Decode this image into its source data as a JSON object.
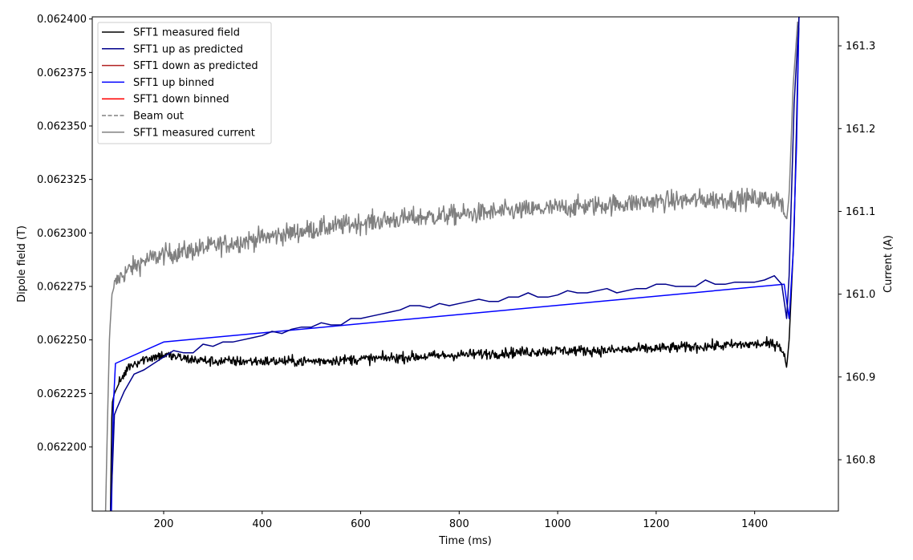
{
  "chart_data": {
    "type": "line",
    "xlabel": "Time (ms)",
    "ylabel_left": "Dipole field (T)",
    "ylabel_right": "Current (A)",
    "xlim": [
      55,
      1570
    ],
    "ylim_left": [
      0.06217,
      0.062401
    ],
    "ylim_right": [
      160.738,
      161.335
    ],
    "x_ticks": [
      200,
      400,
      600,
      800,
      1000,
      1200,
      1400
    ],
    "x_tick_labels": [
      "200",
      "400",
      "600",
      "800",
      "1000",
      "1200",
      "1400"
    ],
    "y_left_ticks": [
      0.0622,
      0.062225,
      0.06225,
      0.062275,
      0.0623,
      0.062325,
      0.06235,
      0.062375,
      0.0624
    ],
    "y_left_tick_labels": [
      "0.062200",
      "0.062225",
      "0.062250",
      "0.062275",
      "0.062300",
      "0.062325",
      "0.062350",
      "0.062375",
      "0.062400"
    ],
    "y_right_ticks": [
      160.8,
      160.9,
      161.0,
      161.1,
      161.2,
      161.3
    ],
    "y_right_tick_labels": [
      "160.8",
      "160.9",
      "161.0",
      "161.1",
      "161.2",
      "161.3"
    ],
    "legend": [
      {
        "label": "SFT1 measured field",
        "color": "#000000",
        "dash": "solid"
      },
      {
        "label": "SFT1 up as predicted",
        "color": "#00008b",
        "dash": "solid"
      },
      {
        "label": "SFT1 down as predicted",
        "color": "#b22222",
        "dash": "solid"
      },
      {
        "label": "SFT1 up binned",
        "color": "#0000ff",
        "dash": "solid"
      },
      {
        "label": "SFT1 down binned",
        "color": "#ff0000",
        "dash": "solid"
      },
      {
        "label": "Beam out",
        "color": "#808080",
        "dash": "dashed"
      },
      {
        "label": "SFT1 measured current",
        "color": "#808080",
        "dash": "solid"
      }
    ],
    "legend_position": "top-left",
    "series": [
      {
        "name": "SFT1 measured field",
        "axis": "left",
        "color": "#000000",
        "noise": 2.2e-06,
        "x": [
          92,
          95,
          100,
          110,
          130,
          160,
          200,
          250,
          300,
          400,
          500,
          600,
          700,
          800,
          900,
          1000,
          1100,
          1200,
          1300,
          1400,
          1450,
          1460,
          1465,
          1470,
          1480,
          1490
        ],
        "y": [
          0.06217,
          0.06222,
          0.062225,
          0.06223,
          0.062238,
          0.062241,
          0.062243,
          0.062241,
          0.06224,
          0.06224,
          0.06224,
          0.062241,
          0.062242,
          0.062243,
          0.062244,
          0.062245,
          0.062245,
          0.062246,
          0.062247,
          0.062248,
          0.062248,
          0.062243,
          0.062237,
          0.06225,
          0.0623,
          0.062401
        ]
      },
      {
        "name": "SFT1 up as predicted",
        "axis": "left",
        "color": "#00008b",
        "noise": 0,
        "x": [
          92,
          96,
          100,
          105,
          120,
          140,
          160,
          180,
          200,
          220,
          240,
          260,
          280,
          300,
          320,
          340,
          360,
          380,
          400,
          420,
          440,
          460,
          480,
          500,
          520,
          540,
          560,
          580,
          600,
          620,
          640,
          660,
          680,
          700,
          720,
          740,
          760,
          780,
          800,
          820,
          840,
          860,
          880,
          900,
          920,
          940,
          960,
          980,
          1000,
          1020,
          1040,
          1060,
          1080,
          1100,
          1120,
          1140,
          1160,
          1180,
          1200,
          1220,
          1240,
          1260,
          1280,
          1300,
          1320,
          1340,
          1360,
          1380,
          1400,
          1420,
          1440,
          1455,
          1465,
          1470,
          1475,
          1480,
          1490
        ],
        "y": [
          0.06217,
          0.06219,
          0.062215,
          0.062218,
          0.062226,
          0.062234,
          0.062236,
          0.062239,
          0.062242,
          0.062245,
          0.062244,
          0.062244,
          0.062248,
          0.062247,
          0.062249,
          0.062249,
          0.06225,
          0.062251,
          0.062252,
          0.062254,
          0.062253,
          0.062255,
          0.062256,
          0.062256,
          0.062258,
          0.062257,
          0.062257,
          0.06226,
          0.06226,
          0.062261,
          0.062262,
          0.062263,
          0.062264,
          0.062266,
          0.062266,
          0.062265,
          0.062267,
          0.062266,
          0.062267,
          0.062268,
          0.062269,
          0.062268,
          0.062268,
          0.06227,
          0.06227,
          0.062272,
          0.06227,
          0.06227,
          0.062271,
          0.062273,
          0.062272,
          0.062272,
          0.062273,
          0.062274,
          0.062272,
          0.062273,
          0.062274,
          0.062274,
          0.062276,
          0.062276,
          0.062275,
          0.062275,
          0.062275,
          0.062278,
          0.062276,
          0.062276,
          0.062277,
          0.062277,
          0.062277,
          0.062278,
          0.06228,
          0.062276,
          0.06226,
          0.06228,
          0.06232,
          0.06236,
          0.062401
        ]
      },
      {
        "name": "SFT1 up binned",
        "axis": "left",
        "color": "#0000ff",
        "noise": 0,
        "x": [
          94,
          98,
          102,
          200,
          1460,
          1465,
          1470,
          1478,
          1485,
          1490
        ],
        "y": [
          0.06217,
          0.06222,
          0.062239,
          0.062249,
          0.062276,
          0.062268,
          0.06226,
          0.06229,
          0.06234,
          0.062401
        ]
      },
      {
        "name": "SFT1 measured current",
        "axis": "right",
        "color": "#808080",
        "noise": 0.011,
        "x": [
          82,
          86,
          90,
          95,
          100,
          110,
          130,
          160,
          200,
          250,
          300,
          400,
          500,
          600,
          700,
          800,
          900,
          1000,
          1100,
          1200,
          1300,
          1400,
          1450,
          1465,
          1470,
          1478,
          1488
        ],
        "y": [
          160.738,
          160.85,
          160.95,
          161.0,
          161.01,
          161.02,
          161.03,
          161.04,
          161.048,
          161.052,
          161.058,
          161.068,
          161.078,
          161.086,
          161.092,
          161.096,
          161.1,
          161.104,
          161.108,
          161.112,
          161.114,
          161.115,
          161.115,
          161.09,
          161.12,
          161.25,
          161.335
        ]
      }
    ]
  }
}
